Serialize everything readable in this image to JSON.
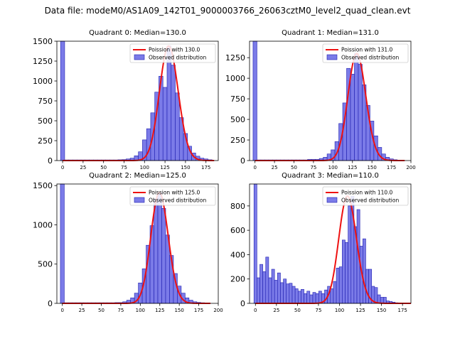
{
  "suptitle": "Data file: modeM0/AS1A09_142T01_9000003766_26063cztM0_level2_quad_clean.evt",
  "colors": {
    "bar_fill": "#7b7be8",
    "bar_edge": "#1f1fb0",
    "poisson_line": "#ee1111"
  },
  "chart_data": [
    {
      "type": "bar",
      "title": "Quadrant 0: Median=130.0",
      "legend": [
        "Poission with 130.0",
        "Observed distribution"
      ],
      "legend_position": "upper right",
      "xlim": [
        -7,
        190
      ],
      "ylim": [
        0,
        1500
      ],
      "xticks": [
        0,
        25,
        50,
        75,
        100,
        125,
        150,
        175
      ],
      "yticks": [
        0,
        250,
        500,
        750,
        1000,
        1250,
        1500
      ],
      "bin_width": 5,
      "bins": [
        [
          0,
          1500
        ],
        [
          5,
          8
        ],
        [
          10,
          8
        ],
        [
          15,
          8
        ],
        [
          20,
          8
        ],
        [
          25,
          8
        ],
        [
          30,
          8
        ],
        [
          35,
          8
        ],
        [
          40,
          8
        ],
        [
          45,
          8
        ],
        [
          50,
          8
        ],
        [
          55,
          8
        ],
        [
          60,
          8
        ],
        [
          65,
          8
        ],
        [
          70,
          10
        ],
        [
          75,
          12
        ],
        [
          80,
          20
        ],
        [
          85,
          30
        ],
        [
          90,
          60
        ],
        [
          95,
          110
        ],
        [
          100,
          260
        ],
        [
          105,
          400
        ],
        [
          110,
          600
        ],
        [
          115,
          860
        ],
        [
          120,
          1060
        ],
        [
          125,
          920
        ],
        [
          130,
          1440
        ],
        [
          135,
          1200
        ],
        [
          140,
          850
        ],
        [
          145,
          540
        ],
        [
          150,
          340
        ],
        [
          155,
          180
        ],
        [
          160,
          95
        ],
        [
          165,
          55
        ],
        [
          170,
          30
        ],
        [
          175,
          20
        ],
        [
          180,
          10
        ]
      ],
      "poisson_mean": 130.0
    },
    {
      "type": "bar",
      "title": "Quadrant 1: Median=131.0",
      "legend": [
        "Poission with 131.0",
        "Observed distribution"
      ],
      "legend_position": "upper right",
      "xlim": [
        -7,
        200
      ],
      "ylim": [
        0,
        1450
      ],
      "xticks": [
        0,
        25,
        50,
        75,
        100,
        125,
        150,
        175,
        200
      ],
      "yticks": [
        0,
        250,
        500,
        750,
        1000,
        1250
      ],
      "bin_width": 5,
      "bins": [
        [
          0,
          1450
        ],
        [
          5,
          8
        ],
        [
          10,
          8
        ],
        [
          15,
          8
        ],
        [
          20,
          8
        ],
        [
          25,
          8
        ],
        [
          30,
          8
        ],
        [
          35,
          8
        ],
        [
          40,
          8
        ],
        [
          45,
          8
        ],
        [
          50,
          8
        ],
        [
          55,
          8
        ],
        [
          60,
          8
        ],
        [
          65,
          8
        ],
        [
          70,
          15
        ],
        [
          75,
          15
        ],
        [
          80,
          15
        ],
        [
          85,
          25
        ],
        [
          90,
          40
        ],
        [
          95,
          80
        ],
        [
          100,
          130
        ],
        [
          105,
          230
        ],
        [
          110,
          450
        ],
        [
          115,
          700
        ],
        [
          120,
          1120
        ],
        [
          125,
          1050
        ],
        [
          130,
          1300
        ],
        [
          135,
          1170
        ],
        [
          140,
          920
        ],
        [
          145,
          670
        ],
        [
          150,
          480
        ],
        [
          155,
          300
        ],
        [
          160,
          160
        ],
        [
          165,
          80
        ],
        [
          170,
          40
        ],
        [
          175,
          20
        ],
        [
          180,
          10
        ],
        [
          185,
          5
        ]
      ],
      "poisson_mean": 131.0
    },
    {
      "type": "bar",
      "title": "Quadrant 2: Median=125.0",
      "legend": [
        "Poission with 125.0",
        "Observed distribution"
      ],
      "legend_position": "upper right",
      "xlim": [
        -7,
        200
      ],
      "ylim": [
        0,
        1520
      ],
      "xticks": [
        0,
        25,
        50,
        75,
        100,
        125,
        150,
        175,
        200
      ],
      "yticks": [
        0,
        500,
        1000,
        1500
      ],
      "bin_width": 5,
      "bins": [
        [
          0,
          1520
        ],
        [
          5,
          8
        ],
        [
          10,
          8
        ],
        [
          15,
          8
        ],
        [
          20,
          8
        ],
        [
          25,
          8
        ],
        [
          30,
          8
        ],
        [
          35,
          8
        ],
        [
          40,
          8
        ],
        [
          45,
          8
        ],
        [
          50,
          8
        ],
        [
          55,
          8
        ],
        [
          60,
          8
        ],
        [
          65,
          8
        ],
        [
          70,
          10
        ],
        [
          75,
          10
        ],
        [
          80,
          20
        ],
        [
          85,
          40
        ],
        [
          90,
          70
        ],
        [
          95,
          130
        ],
        [
          100,
          260
        ],
        [
          105,
          440
        ],
        [
          110,
          740
        ],
        [
          115,
          990
        ],
        [
          120,
          1330
        ],
        [
          125,
          1410
        ],
        [
          130,
          1210
        ],
        [
          135,
          870
        ],
        [
          140,
          610
        ],
        [
          145,
          380
        ],
        [
          150,
          220
        ],
        [
          155,
          130
        ],
        [
          160,
          70
        ],
        [
          165,
          40
        ],
        [
          170,
          20
        ],
        [
          175,
          12
        ],
        [
          180,
          8
        ],
        [
          185,
          5
        ]
      ],
      "poisson_mean": 125.0
    },
    {
      "type": "bar",
      "title": "Quadrant 3: Median=110.0",
      "legend": [
        "Poission with 110.0",
        "Observed distribution"
      ],
      "legend_position": "upper right",
      "xlim": [
        -7,
        185
      ],
      "ylim": [
        0,
        980
      ],
      "xticks": [
        0,
        25,
        50,
        75,
        100,
        125,
        150,
        175
      ],
      "yticks": [
        0,
        200,
        400,
        600,
        800
      ],
      "bin_width": 5,
      "bins": [
        [
          0,
          980
        ],
        [
          3.5,
          210
        ],
        [
          7,
          320
        ],
        [
          10.5,
          260
        ],
        [
          14,
          380
        ],
        [
          17.5,
          210
        ],
        [
          21,
          280
        ],
        [
          24.5,
          190
        ],
        [
          28,
          250
        ],
        [
          31.5,
          170
        ],
        [
          35,
          200
        ],
        [
          38.5,
          160
        ],
        [
          42,
          165
        ],
        [
          45.5,
          140
        ],
        [
          49,
          120
        ],
        [
          52.5,
          100
        ],
        [
          56,
          115
        ],
        [
          59.5,
          80
        ],
        [
          63,
          100
        ],
        [
          66.5,
          70
        ],
        [
          70,
          90
        ],
        [
          73.5,
          80
        ],
        [
          77,
          100
        ],
        [
          80.5,
          80
        ],
        [
          84,
          110
        ],
        [
          87.5,
          140
        ],
        [
          91,
          120
        ],
        [
          94.5,
          180
        ],
        [
          98,
          290
        ],
        [
          101.5,
          300
        ],
        [
          105,
          520
        ],
        [
          108.5,
          500
        ],
        [
          112,
          800
        ],
        [
          115.5,
          880
        ],
        [
          119,
          630
        ],
        [
          122.5,
          770
        ],
        [
          126,
          470
        ],
        [
          129.5,
          530
        ],
        [
          133,
          280
        ],
        [
          136.5,
          280
        ],
        [
          140,
          140
        ],
        [
          143.5,
          130
        ],
        [
          147,
          70
        ],
        [
          150.5,
          50
        ],
        [
          154,
          50
        ],
        [
          157.5,
          20
        ],
        [
          161,
          15
        ],
        [
          164.5,
          10
        ],
        [
          168,
          5
        ]
      ],
      "bin_width_q3": 3.5,
      "poisson_mean": 110.0
    }
  ]
}
